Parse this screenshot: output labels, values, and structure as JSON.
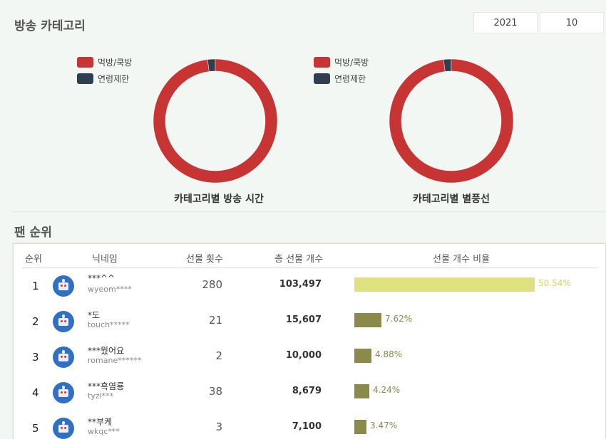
{
  "header": {
    "title": "방송 카테고리",
    "year": "2021",
    "month": "10"
  },
  "colors": {
    "mukbang": "#c73434",
    "age_restricted": "#2f3f4f",
    "bar_top": "#dfe080",
    "bar_other": "#8b8a4a"
  },
  "charts": {
    "legend_mukbang": "먹방/쿡방",
    "legend_age": "연령제한",
    "time_title": "카테고리별 방송 시간",
    "balloon_title": "카테고리별 별풍선"
  },
  "chart_data": [
    {
      "type": "pie",
      "title": "카테고리별 방송 시간",
      "categories": [
        "먹방/쿡방",
        "연령제한"
      ],
      "values": [
        98,
        2
      ],
      "legend": "top-left"
    },
    {
      "type": "pie",
      "title": "카테고리별 별풍선",
      "categories": [
        "먹방/쿡방",
        "연령제한"
      ],
      "values": [
        98,
        2
      ],
      "legend": "top-left"
    }
  ],
  "ranking": {
    "title": "팬 순위",
    "columns": {
      "rank": "순위",
      "nickname": "닉네임",
      "gift_count": "선물 횟수",
      "total_gifts": "총 선물 개수",
      "ratio": "선물 개수 비율"
    },
    "rows": [
      {
        "rank": "1",
        "nick": "***^^",
        "id": "wyeom****",
        "count": "280",
        "total": "103,497",
        "pct": "50.54%",
        "ratio": 0.5054
      },
      {
        "rank": "2",
        "nick": "*도",
        "id": "touch*****",
        "count": "21",
        "total": "15,607",
        "pct": "7.62%",
        "ratio": 0.0762
      },
      {
        "rank": "3",
        "nick": "***뭤어요",
        "id": "romane******",
        "count": "2",
        "total": "10,000",
        "pct": "4.88%",
        "ratio": 0.0488
      },
      {
        "rank": "4",
        "nick": "***흑염룡",
        "id": "tyzl***",
        "count": "38",
        "total": "8,679",
        "pct": "4.24%",
        "ratio": 0.0424
      },
      {
        "rank": "5",
        "nick": "**부케",
        "id": "wkqc***",
        "count": "3",
        "total": "7,100",
        "pct": "3.47%",
        "ratio": 0.0347
      }
    ]
  }
}
